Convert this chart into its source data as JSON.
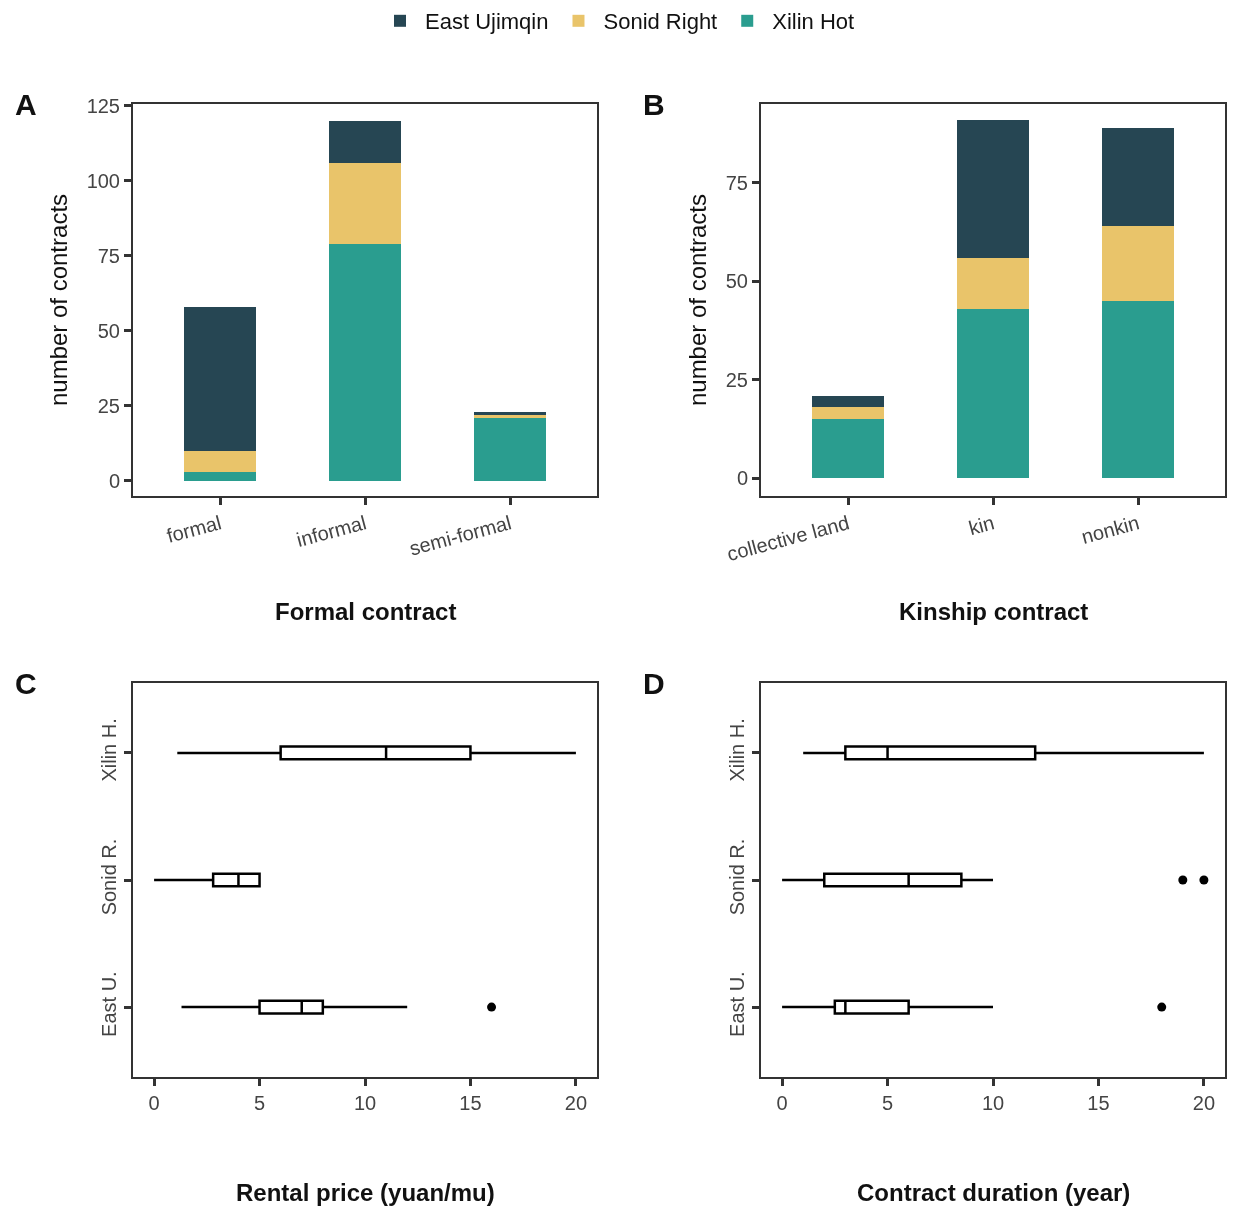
{
  "chart_data": [
    {
      "type": "bar",
      "title": "A",
      "xlabel": "Formal contract",
      "ylabel": "number of contracts",
      "stacked": true,
      "legend": "top",
      "categories": [
        "formal",
        "informal",
        "semi-formal"
      ],
      "series": [
        {
          "name": "Xilin Hot",
          "color": "#2a9d8f",
          "values": [
            3,
            79,
            21
          ]
        },
        {
          "name": "Sonid Right",
          "color": "#e9c46a",
          "values": [
            7,
            27,
            1
          ]
        },
        {
          "name": "East Ujimqin",
          "color": "#264653",
          "values": [
            48,
            14,
            1
          ]
        }
      ],
      "ylim": [
        -5,
        125.5
      ],
      "yticks": [
        0,
        25,
        50,
        75,
        100,
        125
      ]
    },
    {
      "type": "bar",
      "title": "B",
      "xlabel": "Kinship contract",
      "ylabel": "number of contracts",
      "stacked": true,
      "categories": [
        "collective land",
        "kin",
        "nonkin"
      ],
      "series": [
        {
          "color": "#2a9d8f",
          "values": [
            15,
            43,
            45
          ]
        },
        {
          "color": "#e9c46a",
          "values": [
            3,
            13,
            19
          ]
        },
        {
          "color": "#264653",
          "values": [
            3,
            35,
            25
          ]
        }
      ],
      "ylim": [
        -4.5,
        95
      ],
      "yticks": [
        0,
        25,
        50,
        75
      ]
    },
    {
      "type": "box",
      "title": "C",
      "xlabel": "Rental price (yuan/mu)",
      "orientation": "horizontal",
      "categories": [
        "Xilin H.",
        "Sonid R.",
        "East U."
      ],
      "boxes": [
        {
          "low": 1.1,
          "q1": 6,
          "median": 11,
          "q3": 15,
          "high": 20
        },
        {
          "low": 0,
          "q1": 2.8,
          "median": 4,
          "q3": 5,
          "high": 5
        },
        {
          "low": 1.3,
          "q1": 5,
          "median": 7,
          "q3": 8,
          "high": 12,
          "outliers": [
            16
          ]
        }
      ],
      "xlim": [
        -1,
        21
      ],
      "xticks": [
        0,
        5,
        10,
        15,
        20
      ]
    },
    {
      "type": "box",
      "title": "D",
      "xlabel": "Contract duration (year)",
      "orientation": "horizontal",
      "categories": [
        "Xilin H.",
        "Sonid R.",
        "East U."
      ],
      "boxes": [
        {
          "low": 1,
          "q1": 3,
          "median": 5,
          "q3": 12,
          "high": 20
        },
        {
          "low": 0,
          "q1": 2,
          "median": 6,
          "q3": 8.5,
          "high": 10,
          "outliers": [
            19,
            20
          ]
        },
        {
          "low": 0,
          "q1": 2.5,
          "median": 3,
          "q3": 6,
          "high": 10,
          "outliers": [
            18
          ]
        }
      ],
      "xlim": [
        -1,
        21
      ],
      "xticks": [
        0,
        5,
        10,
        15,
        20
      ]
    }
  ]
}
